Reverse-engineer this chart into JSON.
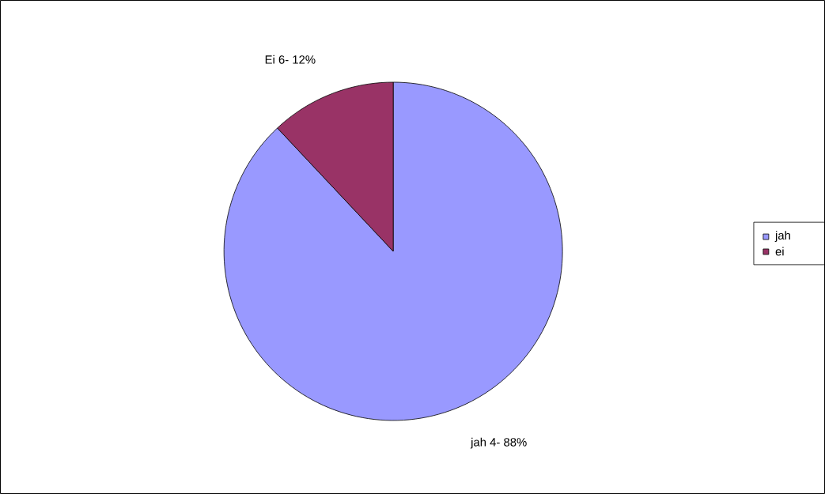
{
  "chart_data": {
    "type": "pie",
    "categories": [
      "jah",
      "ei"
    ],
    "values": [
      88,
      12
    ],
    "colors": [
      "#9999ff",
      "#993366"
    ],
    "annotations": [
      "jah 4- 88%",
      "Ei 6- 12%"
    ],
    "legend": "right"
  }
}
